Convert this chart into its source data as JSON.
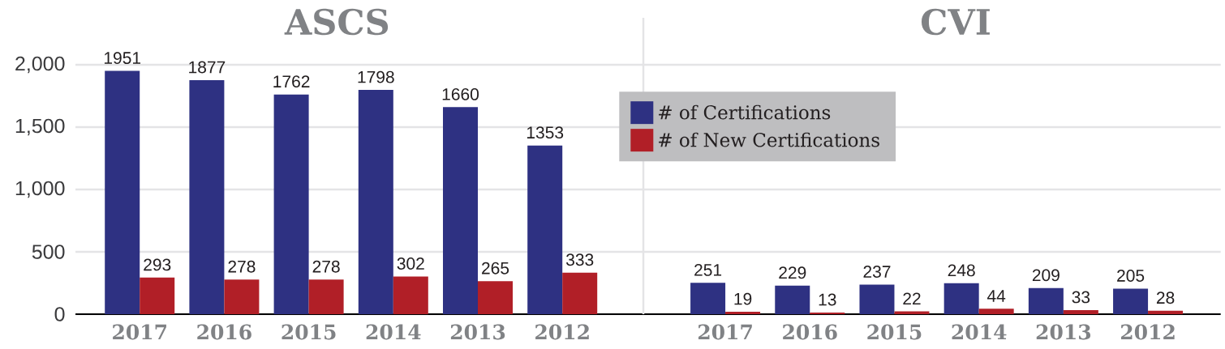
{
  "chart_data": [
    {
      "type": "bar",
      "title": "ASCS",
      "categories": [
        "2017",
        "2016",
        "2015",
        "2014",
        "2013",
        "2012"
      ],
      "series": [
        {
          "color": "#2e3182",
          "values": [
            1951,
            1877,
            1762,
            1798,
            1660,
            1353
          ]
        },
        {
          "color": "#b11f27",
          "values": [
            293,
            278,
            278,
            302,
            265,
            333
          ]
        }
      ],
      "ylim": [
        0,
        2000
      ],
      "yticks": [
        0,
        500,
        {
          "value": 1000,
          "label": "1,000"
        },
        {
          "value": 1500,
          "label": "1,500"
        },
        {
          "value": 2000,
          "label": "2,000"
        }
      ],
      "grid": "y",
      "data_labels": true
    },
    {
      "type": "bar",
      "title": "CVI",
      "categories": [
        "2017",
        "2016",
        "2015",
        "2014",
        "2013",
        "2012"
      ],
      "series": [
        {
          "name": "# of Certifications",
          "color": "#2e3182",
          "values": [
            251,
            229,
            237,
            248,
            209,
            205
          ]
        },
        {
          "name": "# of New Certifications",
          "color": "#b11f27",
          "values": [
            19,
            13,
            22,
            44,
            33,
            28
          ]
        }
      ],
      "ylim": [
        0,
        2000
      ],
      "yticks": [
        0,
        500,
        1000,
        1500,
        2000
      ],
      "grid": "y",
      "data_labels": true,
      "tick_labels": "x",
      "legend": "top left"
    }
  ]
}
